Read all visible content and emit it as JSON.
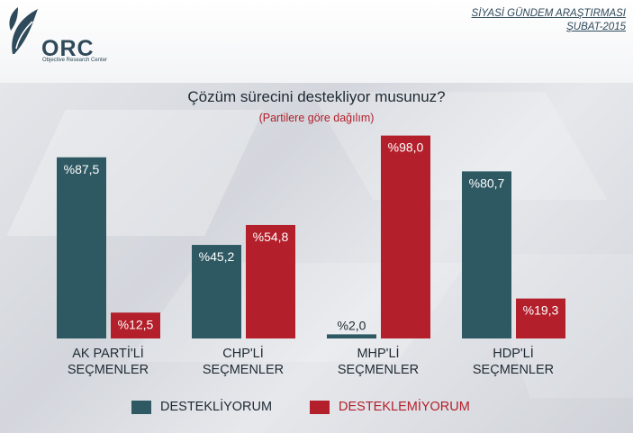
{
  "header": {
    "logo_text": "ORC",
    "logo_subtext": "Objective Research Center",
    "corner_line1": "SİYASİ GÜNDEM ARAŞTIRMASI",
    "corner_line2": "ŞUBAT-2015"
  },
  "colors": {
    "support": "#2e5963",
    "oppose": "#b3202b",
    "subtitle": "#b3202b"
  },
  "chart_data": {
    "type": "bar",
    "title": "Çözüm sürecini destekliyor musunuz?",
    "subtitle": "(Partilere göre dağılım)",
    "categories": [
      [
        "AK PARTİ'Lİ",
        "SEÇMENLER"
      ],
      [
        "CHP'Lİ",
        "SEÇMENLER"
      ],
      [
        "MHP'Lİ",
        "SEÇMENLER"
      ],
      [
        "HDP'Lİ",
        "SEÇMENLER"
      ]
    ],
    "series": [
      {
        "name": "DESTEKLİYORUM",
        "values": [
          87.5,
          45.2,
          2.0,
          80.7
        ],
        "labels": [
          "%87,5",
          "%45,2",
          "%2,0",
          "%80,7"
        ]
      },
      {
        "name": "DESTEKLEMİYORUM",
        "values": [
          12.5,
          54.8,
          98.0,
          19.3
        ],
        "labels": [
          "%12,5",
          "%54,8",
          "%98,0",
          "%19,3"
        ]
      }
    ],
    "ylim": [
      0,
      100
    ],
    "grid": false,
    "legend": "bottom"
  }
}
